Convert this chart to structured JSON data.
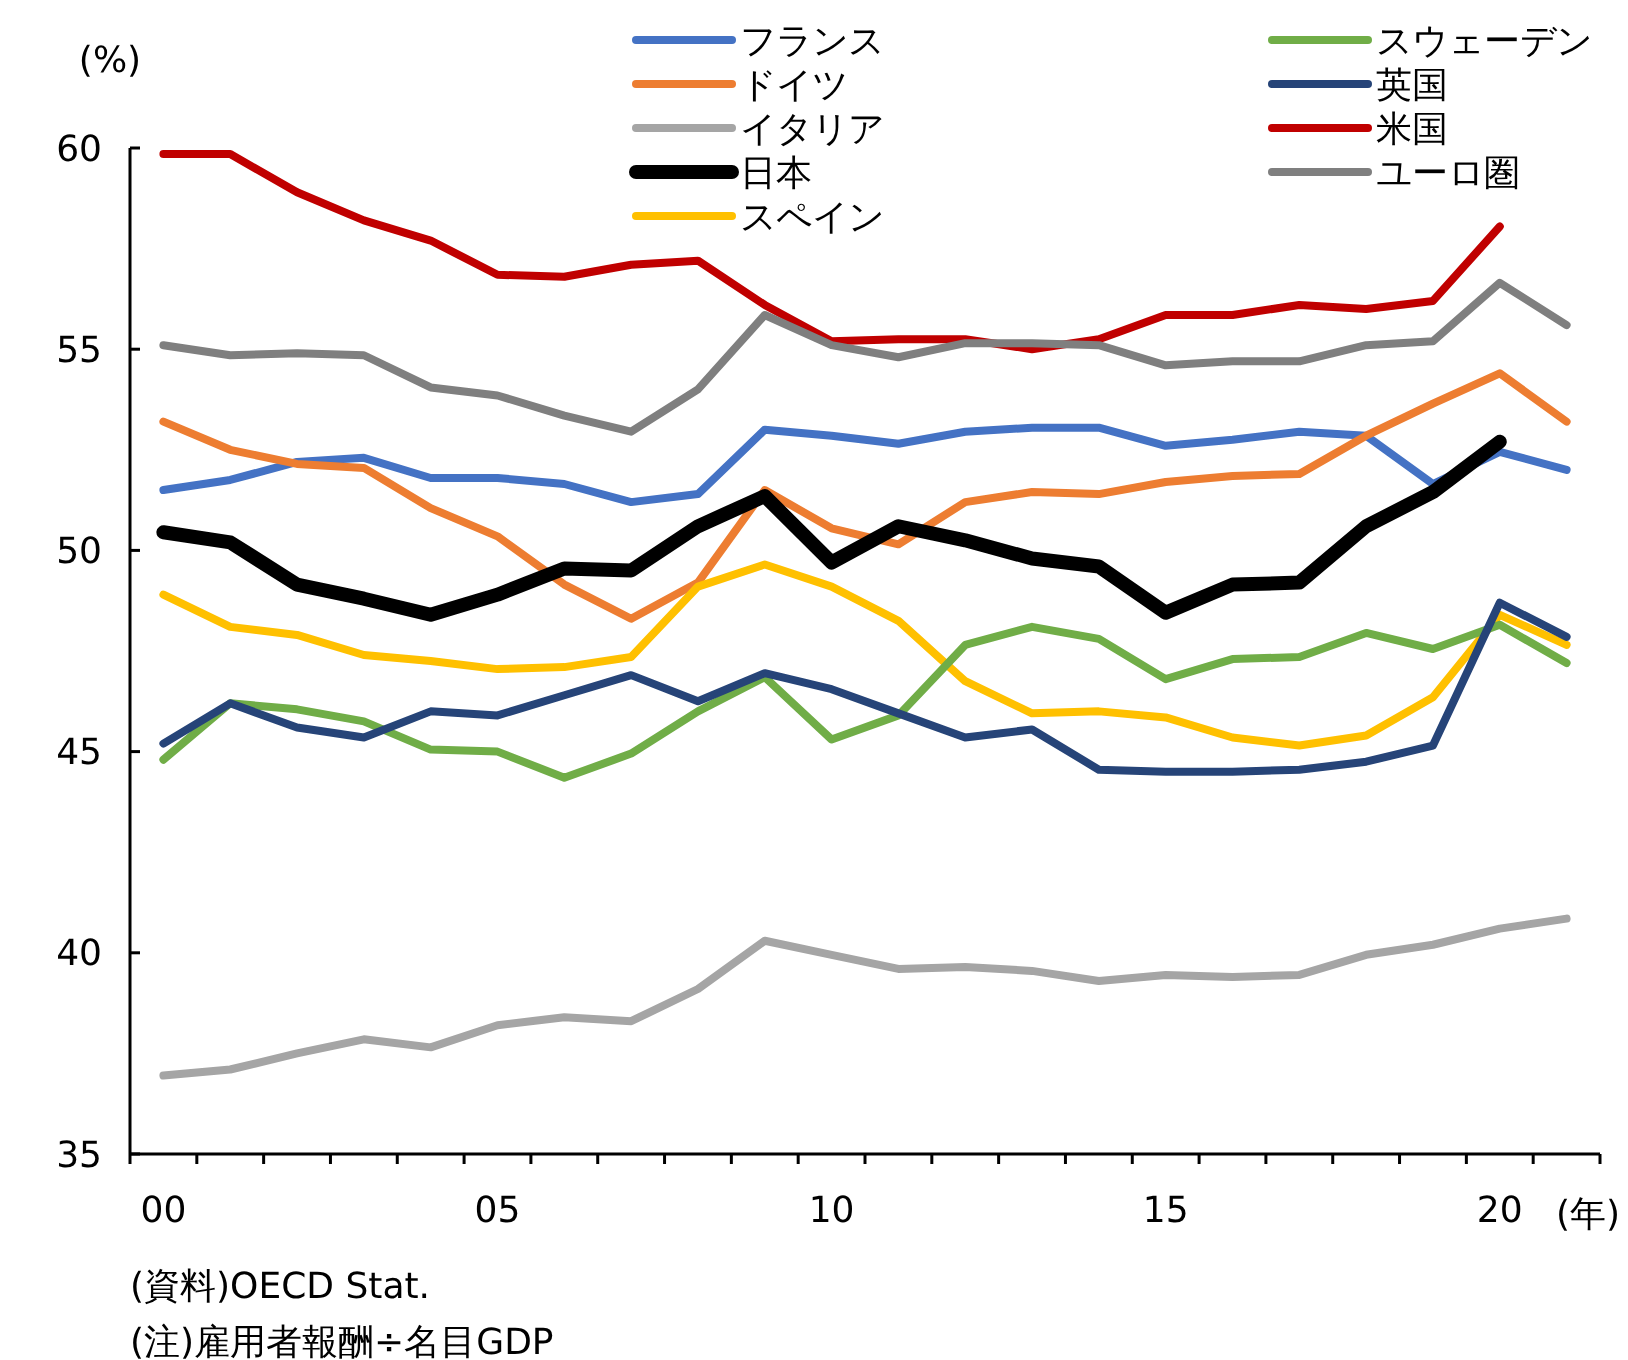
{
  "chart_data": {
    "type": "line",
    "ylabel": "(%)",
    "xlabel": "(年)",
    "categories": [
      "00",
      null,
      null,
      null,
      null,
      "05",
      null,
      null,
      null,
      null,
      "10",
      null,
      null,
      null,
      null,
      "15",
      null,
      null,
      null,
      null,
      "20",
      null
    ],
    "ylim": [
      35,
      60
    ],
    "yticks": [
      35,
      40,
      45,
      50,
      55,
      60
    ],
    "grid": false,
    "legend": "top right",
    "marker": "none",
    "line_style": "solid",
    "series": [
      {
        "name": "フランス",
        "color": "#4472c4",
        "values": [
          51.5,
          51.75,
          52.2,
          52.3,
          51.8,
          51.8,
          51.65,
          51.2,
          51.4,
          53.0,
          52.85,
          52.65,
          52.95,
          53.05,
          53.05,
          52.6,
          52.75,
          52.95,
          52.85,
          51.65,
          52.45,
          52.0
        ]
      },
      {
        "name": "ドイツ",
        "color": "#ed7d31",
        "values": [
          53.2,
          52.5,
          52.15,
          52.05,
          51.05,
          50.35,
          49.15,
          48.3,
          49.2,
          51.5,
          50.55,
          50.15,
          51.2,
          51.45,
          51.4,
          51.7,
          51.85,
          51.9,
          52.85,
          53.65,
          54.4,
          53.2
        ]
      },
      {
        "name": "イタリア",
        "color": "#a5a5a5",
        "values": [
          36.95,
          37.1,
          37.5,
          37.85,
          37.65,
          38.2,
          38.4,
          38.3,
          39.1,
          40.3,
          39.95,
          39.6,
          39.65,
          39.55,
          39.3,
          39.45,
          39.4,
          39.45,
          39.95,
          40.2,
          40.6,
          40.85
        ]
      },
      {
        "name": "日本",
        "color": "#000000",
        "values": [
          50.45,
          50.2,
          49.15,
          48.8,
          48.4,
          48.9,
          49.55,
          49.5,
          50.6,
          51.35,
          49.7,
          50.6,
          50.25,
          49.8,
          49.6,
          48.45,
          49.15,
          49.2,
          50.6,
          51.45,
          52.7,
          null
        ]
      },
      {
        "name": "スペイン",
        "color": "#ffc000",
        "values": [
          48.9,
          48.1,
          47.9,
          47.4,
          47.25,
          47.05,
          47.1,
          47.35,
          49.1,
          49.65,
          49.1,
          48.25,
          46.75,
          45.95,
          46.0,
          45.85,
          45.35,
          45.15,
          45.4,
          46.35,
          48.4,
          47.65
        ]
      },
      {
        "name": "スウェーデン",
        "color": "#70ad47",
        "values": [
          44.8,
          46.2,
          46.05,
          45.75,
          45.05,
          45.0,
          44.35,
          44.95,
          46.0,
          46.85,
          45.3,
          45.9,
          47.65,
          48.1,
          47.8,
          46.8,
          47.3,
          47.35,
          47.95,
          47.55,
          48.15,
          47.2
        ]
      },
      {
        "name": "英国",
        "color": "#264478",
        "values": [
          45.2,
          46.2,
          45.6,
          45.35,
          46.0,
          45.9,
          46.4,
          46.9,
          46.25,
          46.95,
          46.55,
          45.95,
          45.35,
          45.55,
          44.55,
          44.5,
          44.5,
          44.55,
          44.75,
          45.15,
          48.7,
          47.85
        ]
      },
      {
        "name": "米国",
        "color": "#c00000",
        "values": [
          59.85,
          59.85,
          58.9,
          58.2,
          57.7,
          56.85,
          56.8,
          57.1,
          57.2,
          56.1,
          55.2,
          55.25,
          55.25,
          55.0,
          55.25,
          55.85,
          55.85,
          56.1,
          56.0,
          56.2,
          58.05,
          null
        ]
      },
      {
        "name": "ユーロ圏",
        "color": "#7f7f7f",
        "values": [
          55.1,
          54.85,
          54.9,
          54.85,
          54.05,
          53.85,
          53.35,
          52.95,
          54.0,
          55.85,
          55.1,
          54.8,
          55.15,
          55.15,
          55.1,
          54.6,
          54.7,
          54.7,
          55.1,
          55.2,
          56.65,
          55.6
        ]
      }
    ],
    "annotations": [
      "(資料)OECD Stat.",
      "(注)雇用者報酬÷名目GDP"
    ]
  }
}
